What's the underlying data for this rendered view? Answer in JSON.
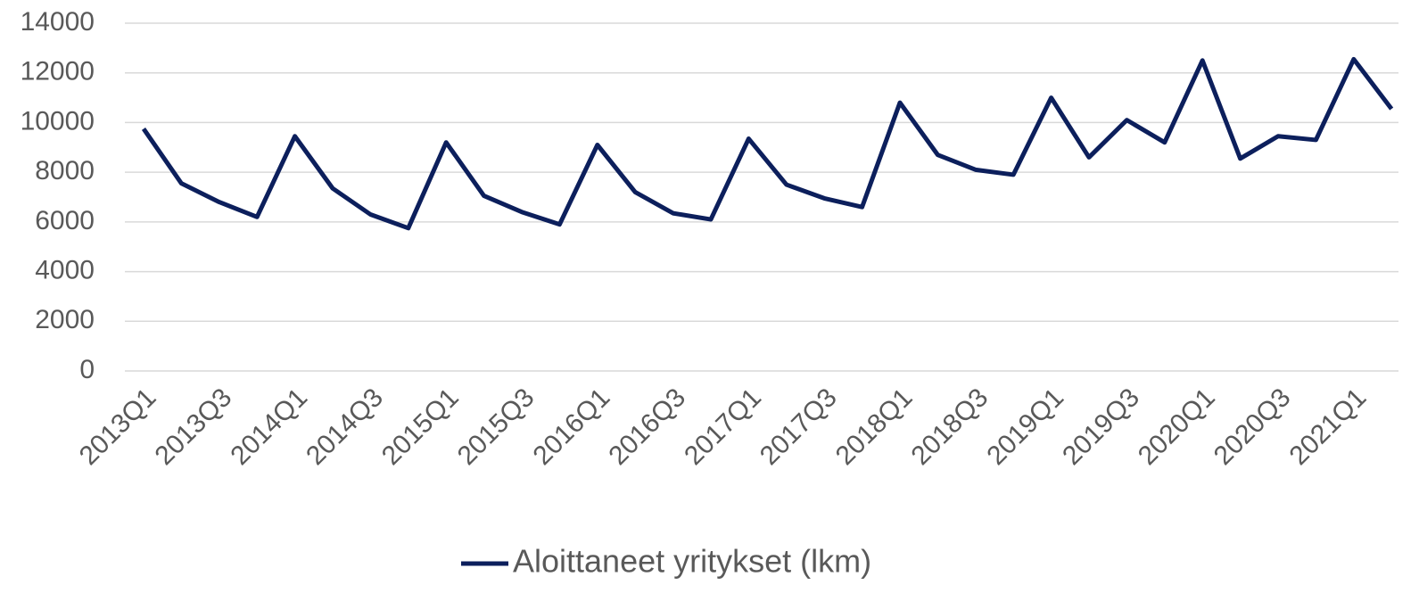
{
  "chart_data": {
    "type": "line",
    "categories": [
      "2013Q1",
      null,
      "2013Q3",
      null,
      "2014Q1",
      null,
      "2014Q3",
      null,
      "2015Q1",
      null,
      "2015Q3",
      null,
      "2016Q1",
      null,
      "2016Q3",
      null,
      "2017Q1",
      null,
      "2017Q3",
      null,
      "2018Q1",
      null,
      "2018Q3",
      null,
      "2019Q1",
      null,
      "2019Q3",
      null,
      "2020Q1",
      null,
      "2020Q3",
      null,
      "2021Q1",
      null
    ],
    "series": [
      {
        "name": "Aloittaneet yritykset (lkm)",
        "color": "#0c1f5c",
        "values": [
          9750,
          7550,
          6800,
          6200,
          9450,
          7350,
          6300,
          5750,
          9200,
          7050,
          6400,
          5900,
          9100,
          7200,
          6350,
          6100,
          9350,
          7500,
          6950,
          6600,
          10800,
          8700,
          8100,
          7900,
          11000,
          8600,
          10100,
          9200,
          12500,
          8550,
          9450,
          9300,
          12550,
          10550
        ]
      }
    ],
    "ylim": [
      0,
      14000
    ],
    "yticks": [
      0,
      2000,
      4000,
      6000,
      8000,
      10000,
      12000,
      14000
    ],
    "grid": true,
    "legend": "bottom"
  }
}
